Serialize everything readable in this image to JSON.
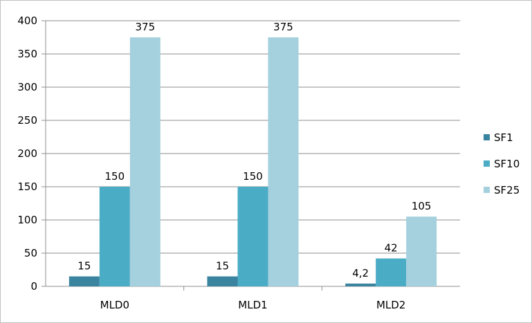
{
  "chart_data": {
    "type": "bar",
    "categories": [
      "MLD0",
      "MLD1",
      "MLD2"
    ],
    "series": [
      {
        "name": "SF1",
        "values": [
          15,
          15,
          4.2
        ],
        "labels": [
          "15",
          "15",
          "4,2"
        ],
        "color": "#3a84a0"
      },
      {
        "name": "SF10",
        "values": [
          150,
          150,
          42
        ],
        "labels": [
          "150",
          "150",
          "42"
        ],
        "color": "#4bacc6"
      },
      {
        "name": "SF25",
        "values": [
          375,
          375,
          105
        ],
        "labels": [
          "375",
          "375",
          "105"
        ],
        "color": "#a5d0de"
      }
    ],
    "ylim": [
      0,
      400
    ],
    "yticks": [
      "0",
      "50",
      "100",
      "150",
      "200",
      "250",
      "300",
      "350",
      "400"
    ],
    "title": "",
    "xlabel": "",
    "ylabel": "",
    "grid": true,
    "legend": "right"
  }
}
